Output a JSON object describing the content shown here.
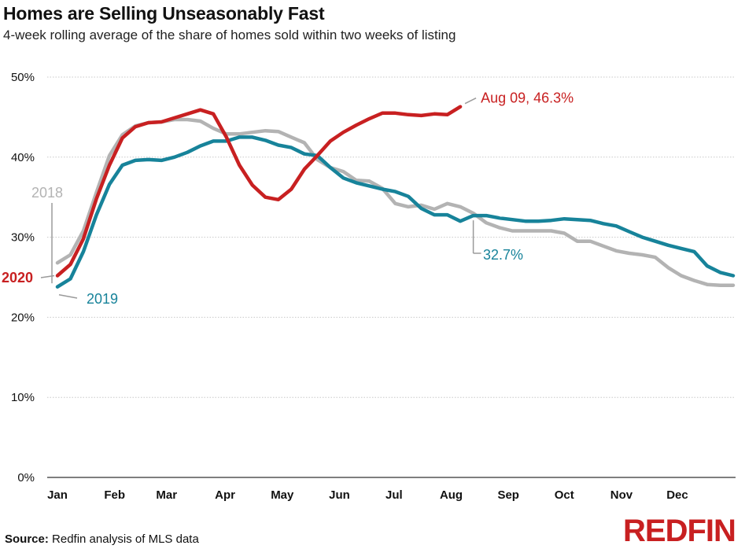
{
  "title": "Homes are Selling Unseasonably Fast",
  "subtitle": "4-week rolling average of the share of homes sold within two weeks of listing",
  "source_label": "Source:",
  "source_text": " Redfin analysis of MLS data",
  "logo_text": "REDFIN",
  "colors": {
    "2018": "#b3b3b3",
    "2019": "#17839a",
    "2020": "#c82021",
    "grid": "#c8c8c8"
  },
  "chart_data": {
    "type": "line",
    "title": "Homes are Selling Unseasonably Fast",
    "subtitle": "4-week rolling average of the share of homes sold within two weeks of listing",
    "xlabel": "",
    "ylabel": "",
    "x_unit": "week_of_year",
    "xlim": [
      1,
      53
    ],
    "ylim": [
      0,
      50
    ],
    "yticks": [
      0,
      10,
      20,
      30,
      40,
      50
    ],
    "ytick_labels": [
      "0%",
      "10%",
      "20%",
      "30%",
      "40%",
      "50%"
    ],
    "xtick_labels": [
      "Jan",
      "Feb",
      "Mar",
      "Apr",
      "May",
      "Jun",
      "Jul",
      "Aug",
      "Sep",
      "Oct",
      "Nov",
      "Dec"
    ],
    "xtick_weeks": [
      1,
      5.4,
      9.4,
      13.9,
      18.3,
      22.7,
      26.9,
      31.3,
      35.7,
      40.0,
      44.4,
      48.7
    ],
    "grid": "horizontal dashed",
    "legend": "direct labels",
    "series": [
      {
        "name": "2018",
        "color": "#b3b3b3",
        "x": [
          1,
          2,
          3,
          4,
          5,
          6,
          7,
          8,
          9,
          10,
          11,
          12,
          13,
          14,
          15,
          16,
          17,
          18,
          19,
          20,
          21,
          22,
          23,
          24,
          25,
          26,
          27,
          28,
          29,
          30,
          31,
          32,
          33,
          34,
          35,
          36,
          37,
          38,
          39,
          40,
          41,
          42,
          43,
          44,
          45,
          46,
          47,
          48,
          49,
          50,
          51,
          52,
          53
        ],
        "values": [
          26.8,
          27.8,
          30.8,
          35.6,
          40.2,
          42.8,
          43.9,
          44.3,
          44.4,
          44.7,
          44.7,
          44.5,
          43.6,
          42.9,
          42.9,
          43.1,
          43.3,
          43.2,
          42.5,
          41.8,
          39.7,
          38.7,
          38.2,
          37.1,
          37.0,
          36.1,
          34.2,
          33.8,
          34.0,
          33.5,
          34.2,
          33.8,
          33.0,
          31.8,
          31.2,
          30.8,
          30.8,
          30.8,
          30.8,
          30.5,
          29.5,
          29.5,
          28.9,
          28.3,
          28.0,
          27.8,
          27.5,
          26.2,
          25.2,
          24.6,
          24.1,
          24.0,
          24.0
        ]
      },
      {
        "name": "2019",
        "color": "#17839a",
        "x": [
          1,
          2,
          3,
          4,
          5,
          6,
          7,
          8,
          9,
          10,
          11,
          12,
          13,
          14,
          15,
          16,
          17,
          18,
          19,
          20,
          21,
          22,
          23,
          24,
          25,
          26,
          27,
          28,
          29,
          30,
          31,
          32,
          33,
          34,
          35,
          36,
          37,
          38,
          39,
          40,
          41,
          42,
          43,
          44,
          45,
          46,
          47,
          48,
          49,
          50,
          51,
          52,
          53
        ],
        "values": [
          23.8,
          24.8,
          28.2,
          32.8,
          36.6,
          39.0,
          39.6,
          39.7,
          39.6,
          40.0,
          40.6,
          41.4,
          42.0,
          42.0,
          42.5,
          42.5,
          42.1,
          41.5,
          41.2,
          40.4,
          40.2,
          38.7,
          37.4,
          36.8,
          36.4,
          36.0,
          35.7,
          35.1,
          33.6,
          32.8,
          32.8,
          32.0,
          32.7,
          32.7,
          32.4,
          32.2,
          32.0,
          32.0,
          32.1,
          32.3,
          32.2,
          32.1,
          31.7,
          31.4,
          30.7,
          30.0,
          29.5,
          29.0,
          28.6,
          28.2,
          26.4,
          25.6,
          25.2
        ]
      },
      {
        "name": "2020",
        "color": "#c82021",
        "x": [
          1,
          2,
          3,
          4,
          5,
          6,
          7,
          8,
          9,
          10,
          11,
          12,
          13,
          14,
          15,
          16,
          17,
          18,
          19,
          20,
          21,
          22,
          23,
          24,
          25,
          26,
          27,
          28,
          29,
          30,
          31,
          32
        ],
        "values": [
          25.2,
          26.6,
          29.8,
          34.8,
          39.0,
          42.4,
          43.8,
          44.3,
          44.4,
          44.9,
          45.4,
          45.9,
          45.4,
          42.5,
          39.0,
          36.5,
          35.0,
          34.7,
          36.0,
          38.5,
          40.2,
          42.0,
          43.1,
          44.0,
          44.8,
          45.5,
          45.5,
          45.3,
          45.2,
          45.4,
          45.3,
          46.3
        ]
      }
    ],
    "annotations": [
      {
        "series": "2018",
        "text": "2018"
      },
      {
        "series": "2019",
        "text": "2019"
      },
      {
        "series": "2020",
        "text": "2020"
      },
      {
        "series": "2020",
        "text": "Aug 09, 46.3%"
      },
      {
        "series": "2019",
        "text": "32.7%"
      }
    ]
  }
}
